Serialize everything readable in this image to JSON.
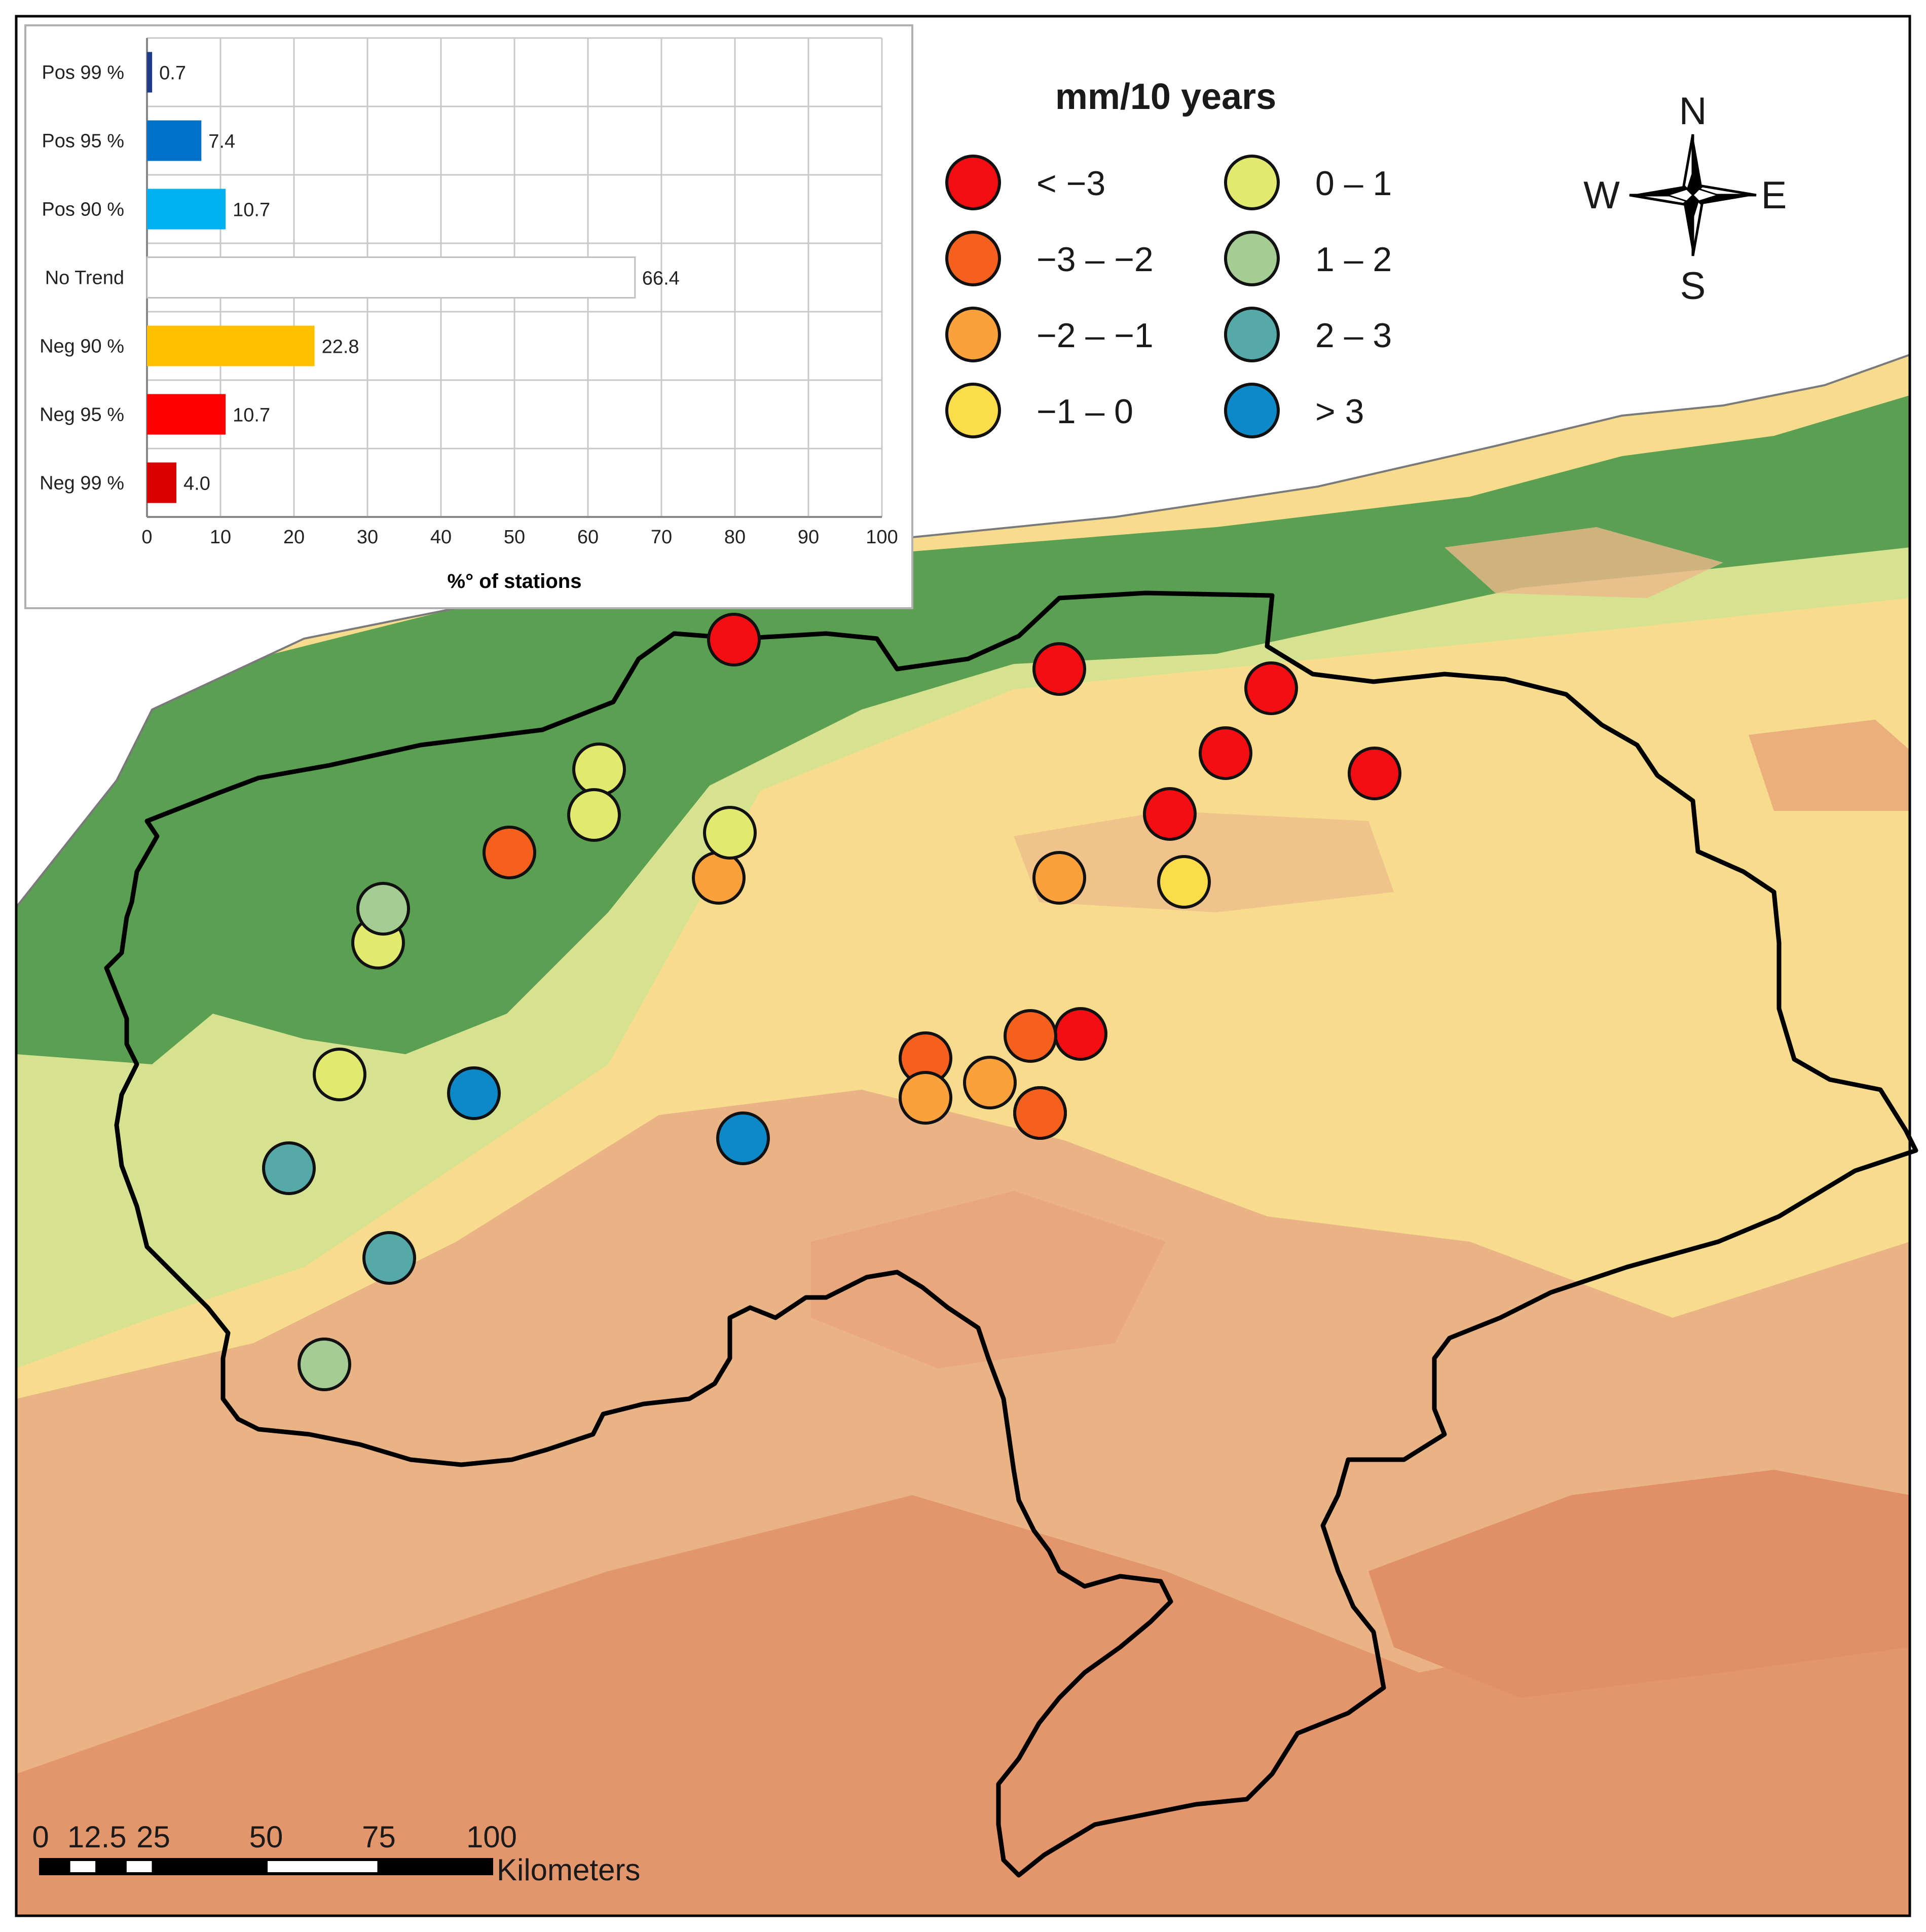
{
  "legend": {
    "title": "mm/10 years",
    "classes": [
      {
        "label": "< −3",
        "color": "#f50d14"
      },
      {
        "label": "−3 – −2",
        "color": "#f5611c"
      },
      {
        "label": "−2 – −1",
        "color": "#f9a13a"
      },
      {
        "label": "−1 – 0",
        "color": "#fbdd4a"
      },
      {
        "label": "0 – 1",
        "color": "#e1ea6e"
      },
      {
        "label": "1 – 2",
        "color": "#a5cc92"
      },
      {
        "label": "2 – 3",
        "color": "#55aaa9"
      },
      {
        "label": "> 3",
        "color": "#0e89c8"
      }
    ]
  },
  "compass": {
    "n": "N",
    "s": "S",
    "e": "E",
    "w": "W"
  },
  "scale_bar": {
    "ticks": [
      "0",
      "12.5",
      "25",
      "50",
      "75",
      "100"
    ],
    "unit": "Kilometers"
  },
  "inset_chart": {
    "chart_data": {
      "type": "bar",
      "orientation": "horizontal",
      "categories": [
        "Pos 99 %",
        "Pos 95 %",
        "Pos 90 %",
        "No Trend",
        "Neg 90 %",
        "Neg 95 %",
        "Neg 99 %"
      ],
      "values": [
        0.7,
        7.4,
        10.7,
        66.4,
        22.8,
        10.7,
        4.0
      ],
      "value_labels": [
        "0.7",
        "7.4",
        "10.7",
        "66.4",
        "22.8",
        "10.7",
        "4.0"
      ],
      "colors": [
        "#1f3a8a",
        "#0070c8",
        "#00b0f0",
        "#ffffff",
        "#ffc000",
        "#ff0000",
        "#d90000"
      ],
      "xlabel": "%° of stations",
      "xlim": [
        0,
        100
      ],
      "xticks": [
        "0",
        "10",
        "20",
        "30",
        "40",
        "50",
        "60",
        "70",
        "80",
        "90",
        "100"
      ],
      "grid": true
    }
  },
  "stations": [
    {
      "class": 0
    },
    {
      "class": 0
    },
    {
      "class": 0
    },
    {
      "class": 0
    },
    {
      "class": 0
    },
    {
      "class": 0
    },
    {
      "class": 0
    },
    {
      "class": 1
    },
    {
      "class": 1
    },
    {
      "class": 1
    },
    {
      "class": 1
    },
    {
      "class": 1
    },
    {
      "class": 2
    },
    {
      "class": 2
    },
    {
      "class": 2
    },
    {
      "class": 2
    },
    {
      "class": 3
    },
    {
      "class": 4
    },
    {
      "class": 4
    },
    {
      "class": 4
    },
    {
      "class": 4
    },
    {
      "class": 4
    },
    {
      "class": 5
    },
    {
      "class": 5
    },
    {
      "class": 6
    },
    {
      "class": 6
    },
    {
      "class": 7
    },
    {
      "class": 7
    }
  ]
}
